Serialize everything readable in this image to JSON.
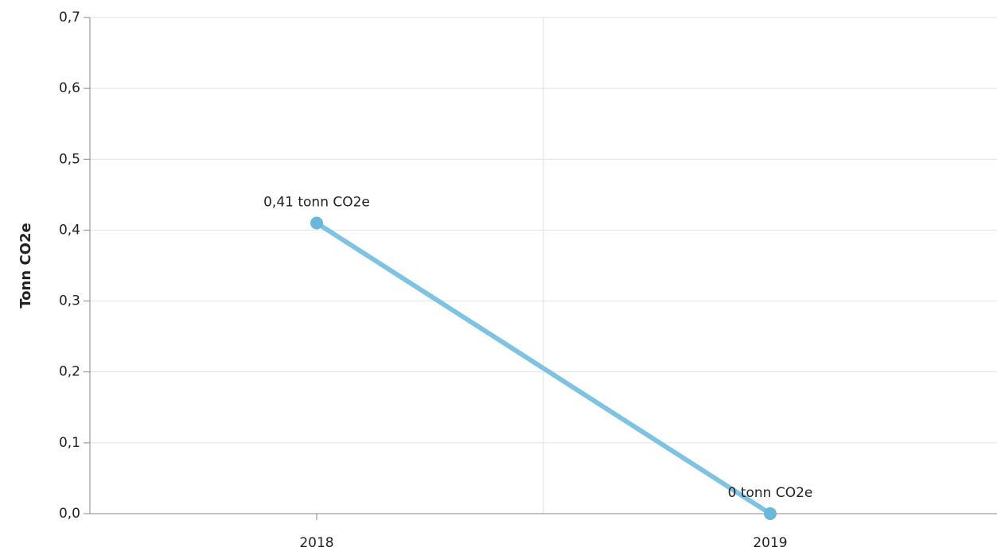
{
  "chart_data": {
    "type": "line",
    "y_label": "Tonn CO2e",
    "categories": [
      "2018",
      "2019"
    ],
    "series": [
      {
        "name": "Tonn CO2e",
        "color": "#7fc3e3",
        "values": [
          0.41,
          0
        ],
        "value_labels": [
          "0,41 tonn CO2e",
          "0 tonn CO2e"
        ]
      }
    ],
    "ylim": [
      0,
      0.7
    ],
    "yticks": [
      {
        "value": 0,
        "label": "0,0"
      },
      {
        "value": 0.1,
        "label": "0,1"
      },
      {
        "value": 0.2,
        "label": "0,2"
      },
      {
        "value": 0.3,
        "label": "0,3"
      },
      {
        "value": 0.4,
        "label": "0,4"
      },
      {
        "value": 0.5,
        "label": "0,5"
      },
      {
        "value": 0.6,
        "label": "0,6"
      },
      {
        "value": 0.7,
        "label": "0,7"
      }
    ],
    "grid": true
  }
}
